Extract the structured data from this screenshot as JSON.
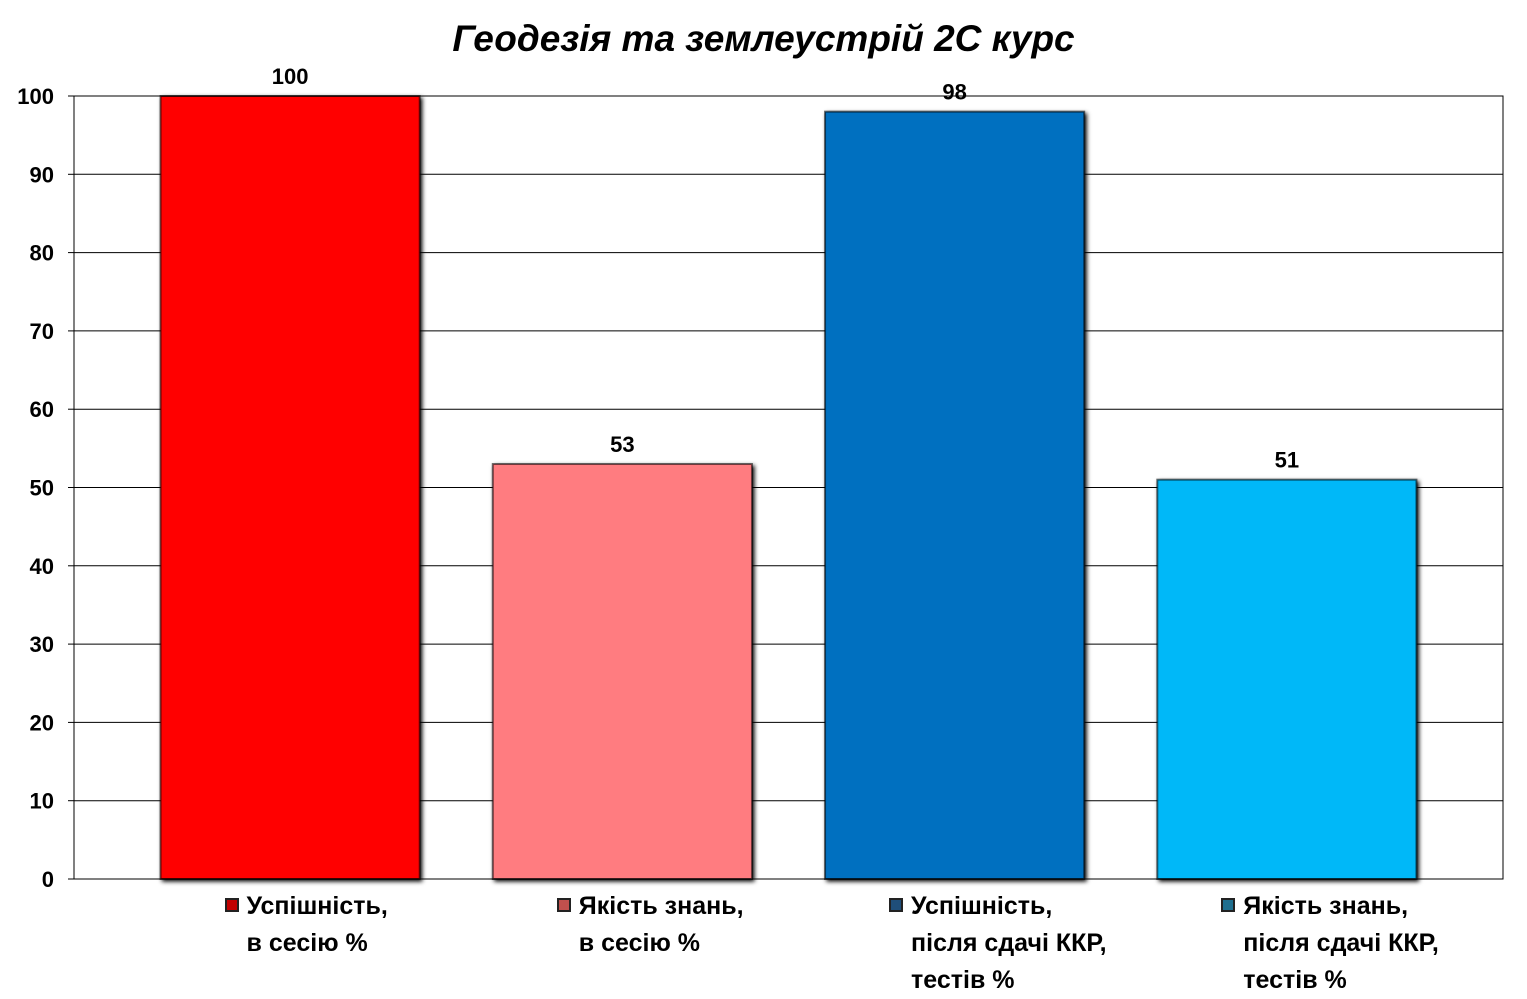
{
  "chart_data": {
    "type": "bar",
    "title": "Геодезія та землеустрій 2С курс",
    "xlabel": "",
    "ylabel": "",
    "ylim": [
      0,
      100
    ],
    "yticks": [
      0,
      10,
      20,
      30,
      40,
      50,
      60,
      70,
      80,
      90,
      100
    ],
    "grid": true,
    "legend_placement": "bottom",
    "categories": [
      "Успішність,\nв сесію %",
      "Якість знань,\nв сесію %",
      "Успішність,\nпісля сдачі ККР,\nтестів %",
      "Якість знань,\nпісля сдачі ККР,\nтестів %"
    ],
    "values": [
      100,
      53,
      98,
      51
    ],
    "data_labels": [
      "100",
      "53",
      "98",
      "51"
    ],
    "colors": [
      "#ff0000",
      "#ff7c80",
      "#0070c0",
      "#00b8f8"
    ],
    "legend_swatch_colors": [
      "#c00000",
      "#c0504d",
      "#1f4e79",
      "#1f6f8f"
    ]
  }
}
